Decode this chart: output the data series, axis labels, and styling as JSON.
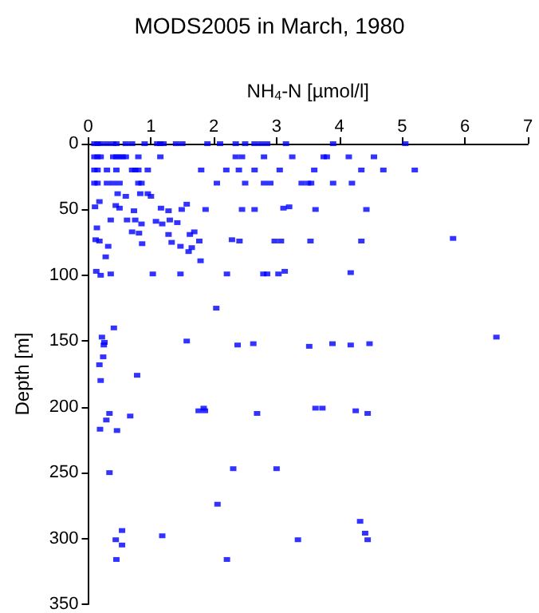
{
  "chart_data": {
    "type": "scatter",
    "title": "MODS2005 in March, 1980",
    "xlabel": "NH$_{4}$-N [µmol/l]",
    "ylabel": "Depth [m]",
    "xlim": [
      0,
      7
    ],
    "xticks": [
      0,
      1,
      2,
      3,
      4,
      5,
      6,
      7
    ],
    "ylim": [
      350,
      0
    ],
    "yticks": [
      0,
      50,
      100,
      150,
      200,
      250,
      300,
      350
    ],
    "grid": false,
    "marker": "square",
    "series": [
      {
        "color": "#0000ff",
        "x": [
          0.1,
          0.15,
          0.2,
          0.3,
          0.4,
          0.45,
          0.6,
          0.7,
          0.9,
          1.1,
          1.15,
          1.2,
          1.4,
          1.5,
          1.9,
          2.1,
          2.35,
          2.5,
          2.65,
          2.75,
          2.85,
          3.15,
          3.9,
          5.05,
          0.1,
          0.15,
          0.2,
          0.4,
          0.45,
          0.5,
          0.55,
          0.6,
          0.8,
          1.15,
          2.35,
          2.45,
          2.8,
          3.25,
          3.75,
          3.8,
          4.15,
          4.55,
          0.1,
          0.15,
          0.3,
          0.45,
          0.7,
          0.75,
          0.8,
          0.95,
          1.8,
          2.2,
          2.4,
          2.65,
          3.05,
          3.6,
          4.35,
          4.7,
          5.2,
          0.1,
          0.15,
          0.3,
          0.4,
          0.5,
          0.8,
          0.85,
          2.05,
          2.5,
          2.8,
          2.9,
          3.4,
          3.5,
          3.55,
          3.9,
          4.2,
          0.18,
          0.47,
          0.6,
          0.83,
          0.95,
          1.0,
          0.11,
          0.44,
          0.5,
          0.73,
          1.16,
          1.28,
          1.49,
          1.57,
          1.87,
          2.45,
          2.65,
          3.11,
          3.2,
          3.62,
          4.43,
          0.14,
          0.36,
          0.62,
          0.75,
          0.85,
          0.7,
          0.81,
          1.08,
          1.18,
          1.3,
          1.42,
          1.28,
          1.62,
          1.69,
          1.77,
          1.33,
          1.47,
          1.6,
          1.65,
          1.79,
          0.12,
          0.18,
          0.32,
          0.86,
          0.28,
          2.29,
          2.41,
          2.97,
          3.07,
          3.54,
          4.35,
          5.81,
          0.13,
          0.2,
          0.36,
          1.03,
          1.47,
          2.21,
          2.79,
          2.85,
          3.03,
          3.13,
          4.18,
          2.04,
          0.41,
          0.22,
          0.26,
          0.25,
          1.57,
          2.38,
          2.63,
          3.52,
          3.89,
          4.18,
          4.48,
          6.5,
          0.24,
          0.18,
          0.2,
          0.78,
          0.34,
          0.29,
          0.19,
          0.46,
          0.67,
          1.76,
          1.84,
          1.86,
          2.69,
          3.62,
          3.73,
          4.26,
          4.45,
          0.34,
          2.31,
          3.0,
          2.06,
          0.54,
          0.44,
          0.54,
          0.45,
          1.18,
          2.21,
          3.34,
          4.33,
          4.41,
          4.45
        ],
        "values": [
          0,
          0,
          0,
          0,
          0,
          0,
          0,
          0,
          0,
          0,
          0,
          0,
          0,
          0,
          0,
          0,
          0,
          0,
          0,
          0,
          0,
          0,
          0,
          0,
          10,
          10,
          10,
          10,
          10,
          10,
          10,
          10,
          10,
          10,
          10,
          10,
          10,
          10,
          10,
          10,
          10,
          10,
          20,
          20,
          20,
          20,
          20,
          20,
          20,
          20,
          20,
          20,
          20,
          20,
          20,
          20,
          20,
          20,
          20,
          30,
          30,
          30,
          30,
          30,
          30,
          30,
          30,
          30,
          30,
          30,
          30,
          30,
          30,
          30,
          30,
          44,
          38,
          40,
          38,
          38,
          40,
          48,
          47,
          49,
          51,
          49,
          51,
          50,
          46,
          50,
          50,
          50,
          49,
          48,
          50,
          50,
          64,
          58,
          58,
          58,
          61,
          67,
          68,
          59,
          61,
          58,
          60,
          69,
          69,
          67,
          74,
          75,
          78,
          82,
          79,
          89,
          73,
          74,
          78,
          76,
          86,
          73,
          74,
          74,
          74,
          74,
          74,
          72,
          97,
          100,
          99,
          99,
          99,
          99,
          99,
          99,
          99,
          97,
          98,
          125,
          140,
          147,
          151,
          153,
          150,
          153,
          152,
          154,
          152,
          153,
          152,
          147,
          162,
          168,
          180,
          176,
          205,
          210,
          217,
          218,
          207,
          203,
          201,
          203,
          205,
          201,
          201,
          203,
          205,
          250,
          247,
          247,
          274,
          294,
          301,
          305,
          316,
          298,
          316,
          301,
          287,
          296,
          301
        ]
      }
    ]
  }
}
